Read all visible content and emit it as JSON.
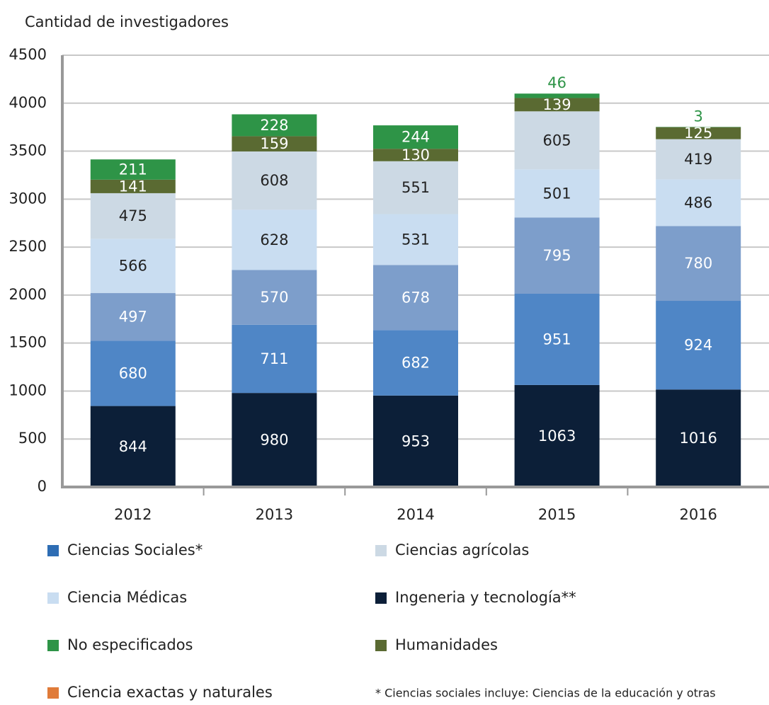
{
  "chart_data": {
    "type": "stacked_bar",
    "title": "Cantidad de investigadores",
    "categories": [
      "2012",
      "2013",
      "2014",
      "2015",
      "2016"
    ],
    "series": [
      {
        "name": "Ingeneria y tecnología**",
        "color": "#0c1f38",
        "legend_color": "#0c1f38",
        "values": [
          844,
          980,
          953,
          1063,
          1016
        ]
      },
      {
        "name": "Ciencias Sociales*",
        "color": "#4f86c6",
        "legend_color": "#2e6db4",
        "values": [
          680,
          711,
          682,
          951,
          924
        ]
      },
      {
        "name": "Ciencia exactas y naturales",
        "color": "#7d9ecb",
        "legend_color": "#e07b39",
        "values": [
          497,
          570,
          678,
          795,
          780
        ]
      },
      {
        "name": "Ciencia Médicas",
        "color": "#c9ddf1",
        "legend_color": "#c9ddf1",
        "values": [
          566,
          628,
          531,
          501,
          486
        ]
      },
      {
        "name": "Ciencias agrícolas",
        "color": "#ccd9e4",
        "legend_color": "#ccd9e4",
        "values": [
          475,
          608,
          551,
          605,
          419
        ]
      },
      {
        "name": "Humanidades",
        "color": "#5a6a32",
        "legend_color": "#5a6a32",
        "values": [
          141,
          159,
          130,
          139,
          125
        ]
      },
      {
        "name": "No especificados",
        "color": "#2e9447",
        "legend_color": "#2e9447",
        "values": [
          211,
          228,
          244,
          46,
          3
        ]
      }
    ],
    "ylim": [
      0,
      4500
    ],
    "yticks": [
      0,
      500,
      1000,
      1500,
      2000,
      2500,
      3000,
      3500,
      4000,
      4500
    ],
    "grid": true,
    "footnote": "* Ciencias sociales incluye: Ciencias de la educación y otras"
  }
}
